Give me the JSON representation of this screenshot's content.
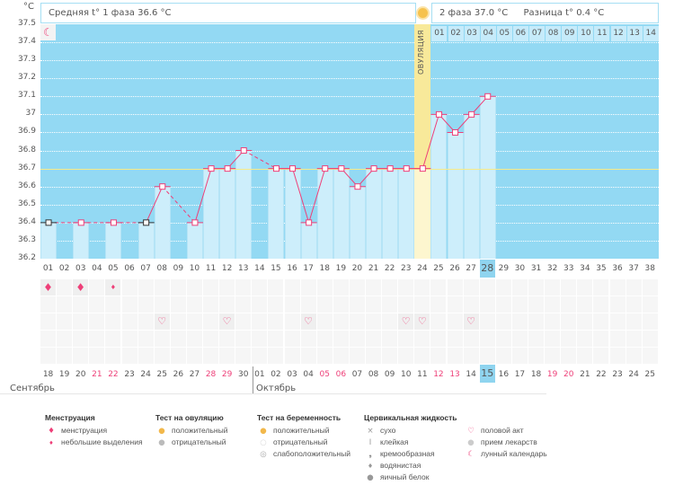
{
  "unit": "°C",
  "header": {
    "phase1": "Средняя t° 1 фаза 36.6 °C",
    "phase2": "2 фаза 37.0 °C",
    "diff": "Разница t° 0.4 °C",
    "ovulation_label": "ОВУЛЯЦИЯ"
  },
  "chart_data": {
    "type": "line",
    "title": "",
    "ylabel": "°C",
    "ylim": [
      36.2,
      37.5
    ],
    "yticks": [
      "37.5",
      "37.4",
      "37.3",
      "37.2",
      "37.1",
      "37",
      "36.9",
      "36.8",
      "36.7",
      "36.6",
      "36.5",
      "36.4",
      "36.3",
      "36.2"
    ],
    "coverline": 36.7,
    "ovulation_day": 24,
    "today_day": 28,
    "cycle_days": [
      "01",
      "02",
      "03",
      "04",
      "05",
      "06",
      "07",
      "08",
      "09",
      "10",
      "11",
      "12",
      "13",
      "14",
      "15",
      "16",
      "17",
      "18",
      "19",
      "20",
      "21",
      "22",
      "23",
      "24",
      "25",
      "26",
      "27",
      "28",
      "29",
      "30",
      "31",
      "32",
      "33",
      "34",
      "35",
      "36",
      "37",
      "38"
    ],
    "phase2_days": [
      "01",
      "02",
      "03",
      "04",
      "05",
      "06",
      "07",
      "08",
      "09",
      "10",
      "11",
      "12",
      "13",
      "14"
    ],
    "temperatures": [
      36.4,
      null,
      36.4,
      null,
      36.4,
      null,
      36.4,
      36.6,
      null,
      36.4,
      36.7,
      36.7,
      36.8,
      null,
      36.7,
      36.7,
      36.4,
      36.7,
      36.7,
      36.6,
      36.7,
      36.7,
      36.7,
      36.7,
      37.0,
      36.9,
      37.0,
      37.1,
      null,
      null,
      null,
      null,
      null,
      null,
      null,
      null,
      null,
      null
    ],
    "series": [
      {
        "name": "Температура",
        "values": "temperatures"
      }
    ]
  },
  "calendar": {
    "dates": [
      "18",
      "19",
      "20",
      "21",
      "22",
      "23",
      "24",
      "25",
      "26",
      "27",
      "28",
      "29",
      "30",
      "01",
      "02",
      "03",
      "04",
      "05",
      "06",
      "07",
      "08",
      "09",
      "10",
      "11",
      "12",
      "13",
      "14",
      "15",
      "16",
      "17",
      "18",
      "19",
      "20",
      "21",
      "22",
      "23",
      "24",
      "25"
    ],
    "weekend_idx": [
      3,
      4,
      10,
      11,
      17,
      18,
      24,
      25,
      31,
      32
    ],
    "months": [
      "Сентябрь",
      "Октябрь"
    ]
  },
  "marks": {
    "menstruation": [
      1,
      3
    ],
    "spotting": [
      5
    ],
    "intercourse": [
      8,
      12,
      17,
      23,
      24,
      27
    ],
    "moon": [
      11
    ]
  },
  "legend": {
    "menstruation": {
      "title": "Менструация",
      "items": [
        "менструация",
        "небольшие выделения"
      ]
    },
    "ovulation_test": {
      "title": "Тест на овуляцию",
      "items": [
        "положительный",
        "отрицательный"
      ]
    },
    "pregnancy_test": {
      "title": "Тест на беременность",
      "items": [
        "положительный",
        "отрицательный",
        "слабоположительный"
      ]
    },
    "cervical": {
      "title": "Цервикальная жидкость",
      "items": [
        "сухо",
        "клейкая",
        "кремообразная",
        "водянистая",
        "яичный белок"
      ]
    },
    "other": {
      "items": [
        "половой акт",
        "прием лекарств",
        "лунный календарь"
      ]
    }
  },
  "colors": {
    "accent": "#ee3f78",
    "plot": "#93d9f3",
    "bar": "#cdeefb",
    "cover": "#f6ea8a",
    "ovulation": "#f8e99a"
  }
}
